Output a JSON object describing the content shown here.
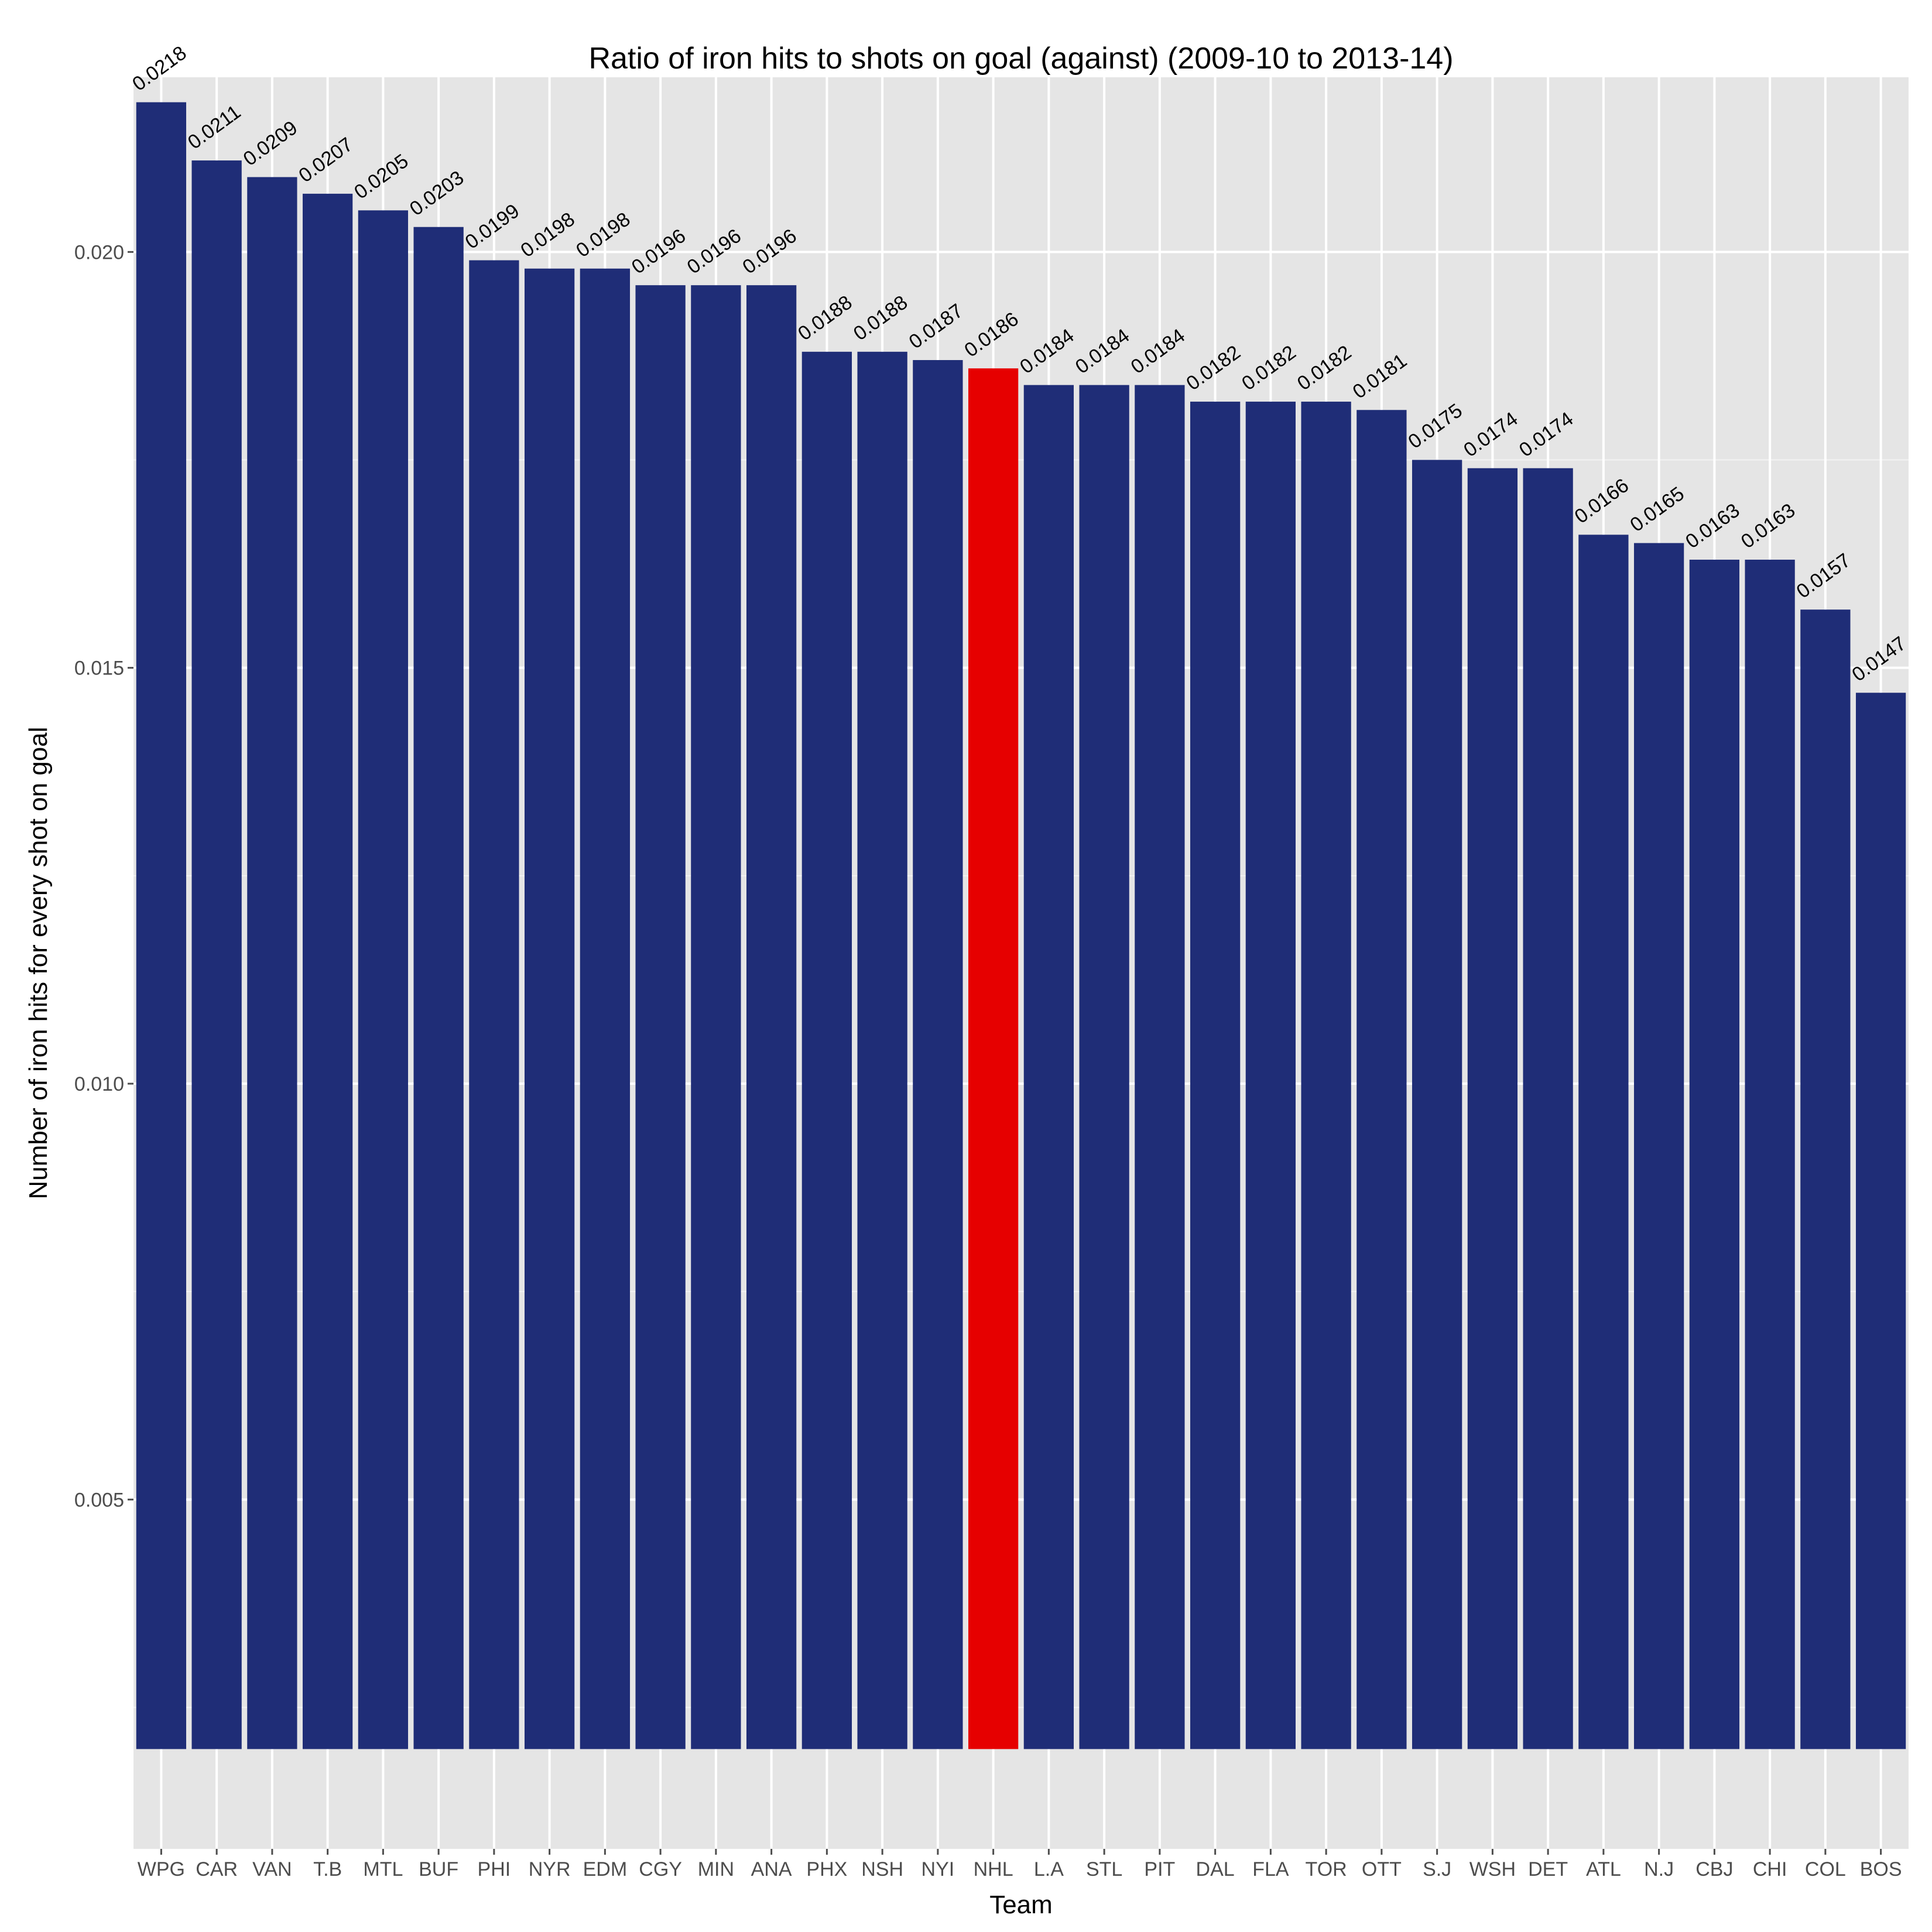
{
  "chart_data": {
    "type": "bar",
    "title": "Ratio of iron hits to shots on goal (against) (2009-10 to 2013-14)",
    "xlabel": "Team",
    "ylabel": "Number of iron hits for every shot on goal",
    "categories": [
      "WPG",
      "CAR",
      "VAN",
      "T.B",
      "MTL",
      "BUF",
      "PHI",
      "NYR",
      "EDM",
      "CGY",
      "MIN",
      "ANA",
      "PHX",
      "NSH",
      "NYI",
      "NHL",
      "L.A",
      "STL",
      "PIT",
      "DAL",
      "FLA",
      "TOR",
      "OTT",
      "S.J",
      "WSH",
      "DET",
      "ATL",
      "N.J",
      "CBJ",
      "CHI",
      "COL",
      "BOS"
    ],
    "values": [
      0.0218,
      0.0211,
      0.0209,
      0.0207,
      0.0205,
      0.0203,
      0.0199,
      0.0198,
      0.0198,
      0.0196,
      0.0196,
      0.0196,
      0.0188,
      0.0188,
      0.0187,
      0.0186,
      0.0184,
      0.0184,
      0.0184,
      0.0182,
      0.0182,
      0.0182,
      0.0181,
      0.0175,
      0.0174,
      0.0174,
      0.0166,
      0.0165,
      0.0163,
      0.0163,
      0.0157,
      0.0147
    ],
    "data_labels": [
      "0.0218",
      "0.0211",
      "0.0209",
      "0.0207",
      "0.0205",
      "0.0203",
      "0.0199",
      "0.0198",
      "0.0198",
      "0.0196",
      "0.0196",
      "0.0196",
      "0.0188",
      "0.0188",
      "0.0187",
      "0.0186",
      "0.0184",
      "0.0184",
      "0.0184",
      "0.0182",
      "0.0182",
      "0.0182",
      "0.0181",
      "0.0175",
      "0.0174",
      "0.0174",
      "0.0166",
      "0.0165",
      "0.0163",
      "0.0163",
      "0.0157",
      "0.0147"
    ],
    "highlight_category": "NHL",
    "bar_base": 0.002,
    "ylim": [
      0.0008,
      0.0221
    ],
    "yticks": [
      0.005,
      0.01,
      0.015,
      0.02
    ],
    "ytick_labels": [
      "0.005",
      "0.010",
      "0.015",
      "0.020"
    ],
    "grid": true,
    "colors": {
      "bar": "#1f2d77",
      "highlight": "#e60000",
      "panel": "#e5e5e5",
      "grid": "#ffffff"
    }
  }
}
